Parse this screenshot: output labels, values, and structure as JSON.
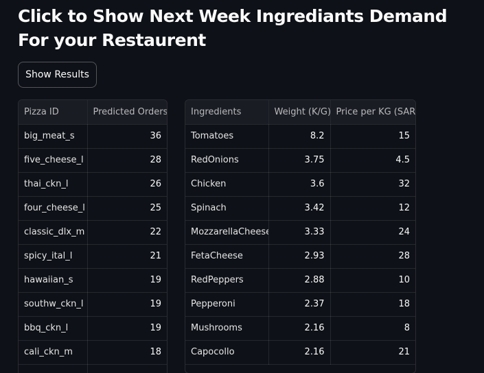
{
  "page": {
    "title": "Click to Show Next Week Ingrediants Demand For your Restaurent"
  },
  "controls": {
    "show_results_label": "Show Results"
  },
  "pizza_table": {
    "columns": [
      "Pizza ID",
      "Predicted Orders"
    ],
    "rows": [
      {
        "pizza_id": "big_meat_s",
        "orders": "36"
      },
      {
        "pizza_id": "five_cheese_l",
        "orders": "28"
      },
      {
        "pizza_id": "thai_ckn_l",
        "orders": "26"
      },
      {
        "pizza_id": "four_cheese_l",
        "orders": "25"
      },
      {
        "pizza_id": "classic_dlx_m",
        "orders": "22"
      },
      {
        "pizza_id": "spicy_ital_l",
        "orders": "21"
      },
      {
        "pizza_id": "hawaiian_s",
        "orders": "19"
      },
      {
        "pizza_id": "southw_ckn_l",
        "orders": "19"
      },
      {
        "pizza_id": "bbq_ckn_l",
        "orders": "19"
      },
      {
        "pizza_id": "cali_ckn_m",
        "orders": "18"
      }
    ]
  },
  "ingredients_table": {
    "columns": [
      "Ingredients",
      "Weight (K/G)",
      "Price per KG (SAR)"
    ],
    "rows": [
      {
        "name": "Tomatoes",
        "weight": "8.2",
        "price": "15"
      },
      {
        "name": "RedOnions",
        "weight": "3.75",
        "price": "4.5"
      },
      {
        "name": "Chicken",
        "weight": "3.6",
        "price": "32"
      },
      {
        "name": "Spinach",
        "weight": "3.42",
        "price": "12"
      },
      {
        "name": "MozzarellaCheese",
        "weight": "3.33",
        "price": "24"
      },
      {
        "name": "FetaCheese",
        "weight": "2.93",
        "price": "28"
      },
      {
        "name": "RedPeppers",
        "weight": "2.88",
        "price": "10"
      },
      {
        "name": "Pepperoni",
        "weight": "2.37",
        "price": "18"
      },
      {
        "name": "Mushrooms",
        "weight": "2.16",
        "price": "8"
      },
      {
        "name": "Capocollo",
        "weight": "2.16",
        "price": "21"
      }
    ]
  }
}
